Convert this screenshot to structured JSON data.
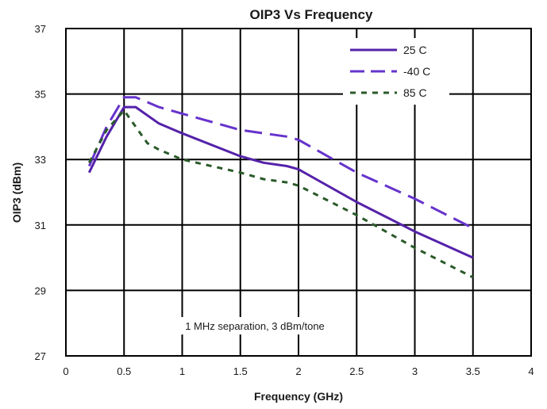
{
  "chart_data": {
    "type": "line",
    "title": "OIP3 Vs Frequency",
    "xlabel": "Frequency (GHz)",
    "ylabel": "OIP3 (dBm)",
    "xlim": [
      0,
      4
    ],
    "ylim": [
      27,
      37
    ],
    "xticks": [
      "0",
      "0.5",
      "1",
      "1.5",
      "2",
      "2.5",
      "3",
      "3.5",
      "4"
    ],
    "yticks": [
      "27",
      "29",
      "31",
      "33",
      "35",
      "37"
    ],
    "grid": true,
    "legend_position": "top-right",
    "annotation": "1 MHz separation, 3 dBm/tone",
    "series": [
      {
        "name": "25 C",
        "color": "#5522aa",
        "dash": "solid",
        "points": [
          [
            0.2,
            32.6
          ],
          [
            0.35,
            33.7
          ],
          [
            0.5,
            34.6
          ],
          [
            0.6,
            34.6
          ],
          [
            0.8,
            34.1
          ],
          [
            1.0,
            33.8
          ],
          [
            1.5,
            33.1
          ],
          [
            1.7,
            32.9
          ],
          [
            1.9,
            32.8
          ],
          [
            2.0,
            32.7
          ],
          [
            2.5,
            31.7
          ],
          [
            3.0,
            30.8
          ],
          [
            3.5,
            30.0
          ]
        ]
      },
      {
        "name": "-40 C",
        "color": "#6633cc",
        "dash": "long",
        "points": [
          [
            0.2,
            32.8
          ],
          [
            0.35,
            34.0
          ],
          [
            0.5,
            34.9
          ],
          [
            0.6,
            34.9
          ],
          [
            0.8,
            34.6
          ],
          [
            1.0,
            34.4
          ],
          [
            1.5,
            33.9
          ],
          [
            1.7,
            33.8
          ],
          [
            1.9,
            33.7
          ],
          [
            2.0,
            33.6
          ],
          [
            2.5,
            32.6
          ],
          [
            3.0,
            31.8
          ],
          [
            3.5,
            30.9
          ]
        ]
      },
      {
        "name": "85 C",
        "color": "#2a5a2a",
        "dash": "short",
        "points": [
          [
            0.2,
            32.9
          ],
          [
            0.35,
            33.9
          ],
          [
            0.5,
            34.5
          ],
          [
            0.6,
            34.0
          ],
          [
            0.7,
            33.5
          ],
          [
            0.8,
            33.3
          ],
          [
            1.0,
            33.0
          ],
          [
            1.5,
            32.6
          ],
          [
            1.7,
            32.4
          ],
          [
            1.9,
            32.3
          ],
          [
            2.0,
            32.2
          ],
          [
            2.5,
            31.3
          ],
          [
            3.0,
            30.3
          ],
          [
            3.5,
            29.4
          ]
        ]
      }
    ]
  }
}
